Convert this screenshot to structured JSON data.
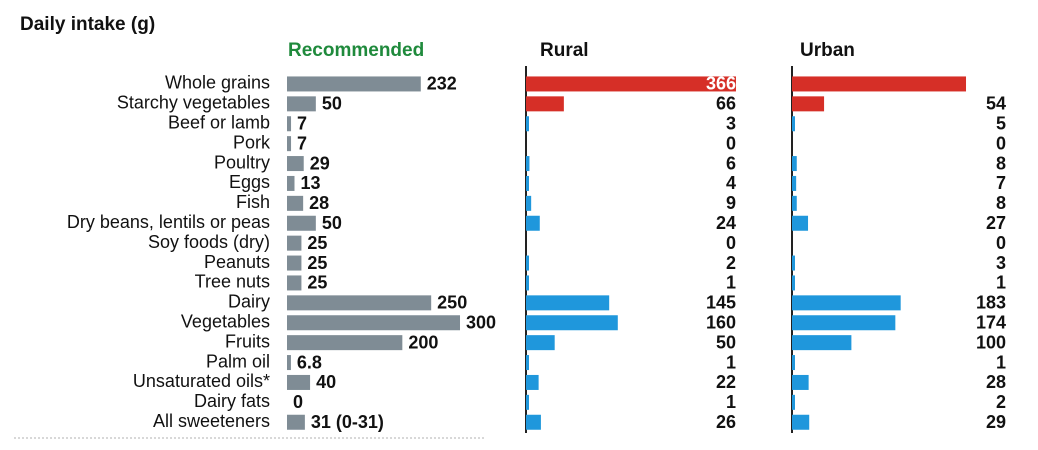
{
  "chart_data": {
    "type": "bar",
    "title": "Daily intake (g)",
    "categories": [
      "Whole grains",
      "Starchy vegetables",
      "Beef or lamb",
      "Pork",
      "Poultry",
      "Eggs",
      "Fish",
      "Dry beans, lentils or peas",
      "Soy foods (dry)",
      "Peanuts",
      "Tree nuts",
      "Dairy",
      "Vegetables",
      "Fruits",
      "Palm oil",
      "Unsaturated oils*",
      "Dairy fats",
      "All sweeteners"
    ],
    "series": [
      {
        "name": "Recommended",
        "values": [
          232,
          50,
          7,
          7,
          29,
          13,
          28,
          50,
          25,
          25,
          25,
          250,
          300,
          200,
          6.8,
          40,
          0,
          31
        ],
        "labels": [
          "232",
          "50",
          "7",
          "7",
          "29",
          "13",
          "28",
          "50",
          "25",
          "25",
          "25",
          "250",
          "300",
          "200",
          "6.8",
          "40",
          "0",
          "31 (0-31)"
        ],
        "color": "#7f8c95"
      },
      {
        "name": "Rural",
        "values": [
          366,
          66,
          3,
          0,
          6,
          4,
          9,
          24,
          0,
          2,
          1,
          145,
          160,
          50,
          1,
          22,
          1,
          26
        ],
        "color": "#1f97dc",
        "highlight_color": "#d62f27"
      },
      {
        "name": "Urban",
        "values": [
          293,
          54,
          5,
          0,
          8,
          7,
          8,
          27,
          0,
          3,
          1,
          183,
          174,
          100,
          1,
          28,
          2,
          29
        ],
        "color": "#1f97dc",
        "highlight_color": "#d62f27"
      }
    ],
    "highlighted_categories": [
      "Whole grains",
      "Starchy vegetables"
    ],
    "legend": "column headers"
  }
}
